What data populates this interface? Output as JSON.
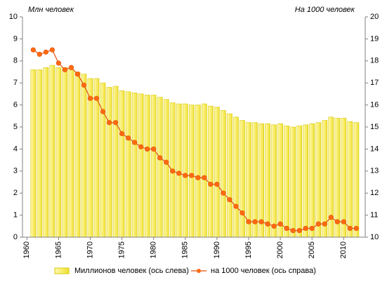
{
  "chart_data": {
    "type": "combo",
    "ylabel": "Млн  человек",
    "y2label": "На 1000 человек",
    "x": [
      1961,
      1962,
      1963,
      1964,
      1965,
      1966,
      1967,
      1968,
      1969,
      1970,
      1971,
      1972,
      1973,
      1974,
      1975,
      1976,
      1977,
      1978,
      1979,
      1980,
      1981,
      1982,
      1983,
      1984,
      1985,
      1986,
      1987,
      1988,
      1989,
      1990,
      1991,
      1992,
      1993,
      1994,
      1995,
      1996,
      1997,
      1998,
      1999,
      2000,
      2001,
      2002,
      2003,
      2004,
      2005,
      2006,
      2007,
      2008,
      2009,
      2010,
      2011,
      2012
    ],
    "series": [
      {
        "name": "Миллионов  человек (ось слева)",
        "type": "bar",
        "color": "#ffff80",
        "values": [
          7.6,
          7.6,
          7.7,
          7.8,
          7.7,
          7.7,
          7.6,
          7.5,
          7.4,
          7.2,
          7.2,
          7.0,
          6.8,
          6.85,
          6.65,
          6.6,
          6.55,
          6.5,
          6.45,
          6.45,
          6.35,
          6.25,
          6.1,
          6.05,
          6.05,
          6.0,
          6.0,
          6.05,
          5.95,
          5.9,
          5.75,
          5.6,
          5.45,
          5.3,
          5.2,
          5.2,
          5.15,
          5.15,
          5.1,
          5.15,
          5.05,
          5.0,
          5.05,
          5.1,
          5.15,
          5.2,
          5.3,
          5.45,
          5.4,
          5.4,
          5.25,
          5.2
        ]
      },
      {
        "name": "на 1000 человек (ось справа)",
        "type": "line",
        "axis": "y2",
        "color": "#e05010",
        "values": [
          18.5,
          18.3,
          18.4,
          18.5,
          17.9,
          17.6,
          17.7,
          17.4,
          16.9,
          16.3,
          16.3,
          15.7,
          15.2,
          15.2,
          14.7,
          14.5,
          14.3,
          14.1,
          14.0,
          14.0,
          13.6,
          13.4,
          13.0,
          12.9,
          12.8,
          12.8,
          12.7,
          12.7,
          12.4,
          12.4,
          12.0,
          11.7,
          11.4,
          11.1,
          10.7,
          10.7,
          10.7,
          10.6,
          10.5,
          10.6,
          10.4,
          10.3,
          10.3,
          10.4,
          10.4,
          10.6,
          10.6,
          10.9,
          10.7,
          10.7,
          10.4,
          10.4
        ]
      }
    ],
    "xlim": [
      1959.3,
      2013.4
    ],
    "xticks": [
      1960,
      1965,
      1970,
      1975,
      1980,
      1985,
      1990,
      1995,
      2000,
      2005,
      2010
    ],
    "ylim": [
      0,
      10
    ],
    "yticks": [
      0,
      1,
      2,
      3,
      4,
      5,
      6,
      7,
      8,
      9,
      10
    ],
    "y2lim": [
      10,
      20
    ],
    "y2ticks": [
      10,
      11,
      12,
      13,
      14,
      15,
      16,
      17,
      18,
      19,
      20
    ],
    "grid": false
  }
}
